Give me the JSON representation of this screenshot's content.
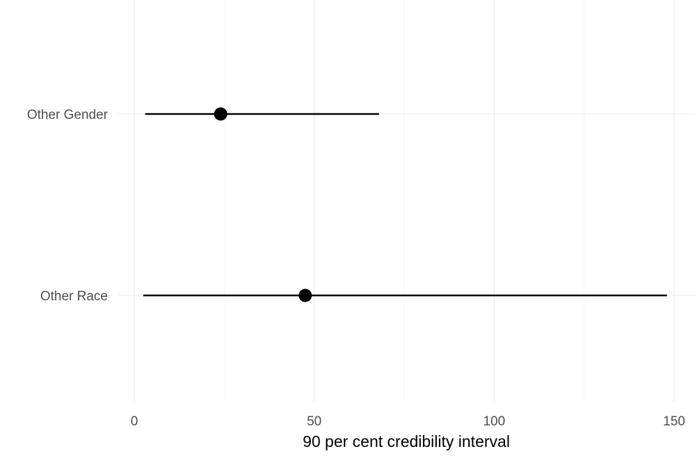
{
  "chart_data": {
    "type": "interval",
    "xlabel": "90 per cent credibility interval",
    "ylabel": "",
    "xlim": [
      0,
      155
    ],
    "x_ticks": [
      0,
      50,
      100,
      150
    ],
    "x_tick_labels": [
      "0",
      "50",
      "100",
      "150"
    ],
    "categories": [
      "Other Gender",
      "Other Race"
    ],
    "intervals": [
      {
        "category": "Other Gender",
        "low": 3,
        "estimate": 24,
        "high": 68
      },
      {
        "category": "Other Race",
        "low": 2.5,
        "estimate": 47.5,
        "high": 148
      }
    ],
    "grid": true,
    "legend": "none",
    "colors": {
      "marks": "#000000",
      "grid_major": "#ebebeb",
      "grid_minor": "#f2f2f2",
      "tick_text": "#4d4d4d"
    }
  }
}
